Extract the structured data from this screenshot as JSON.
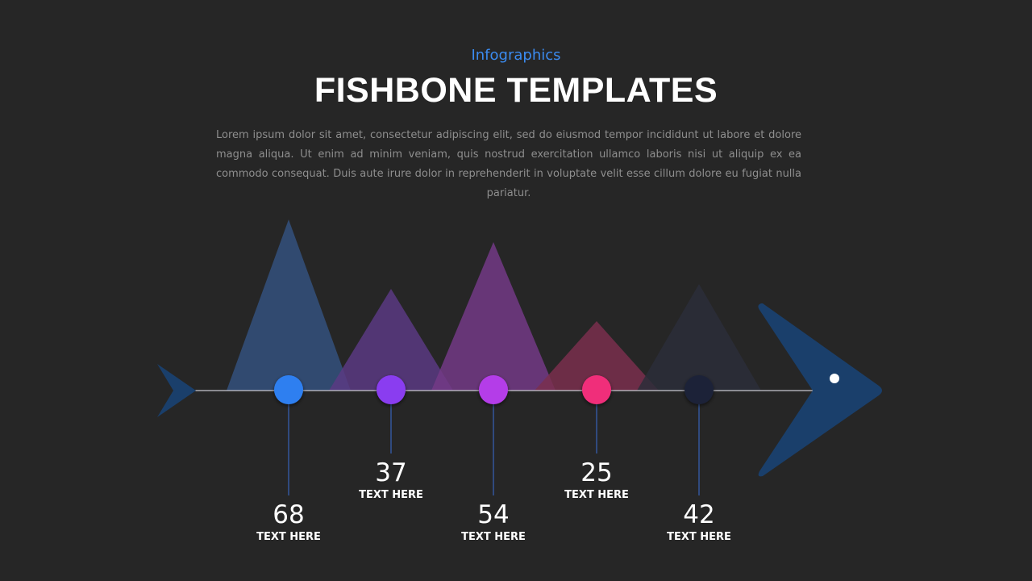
{
  "header": {
    "subtitle": "Infographics",
    "title": "FISHBONE TEMPLATES",
    "body": "Lorem ipsum dolor sit amet, consectetur adipiscing elit, sed do eiusmod tempor incididunt ut labore et dolore magna aliqua. Ut enim ad minim veniam, quis nostrud exercitation ullamco laboris nisi ut aliquip ex ea commodo consequat. Duis aute irure dolor in reprehenderit in voluptate velit esse cillum dolore eu fugiat nulla pariatur."
  },
  "colors": {
    "background": "#262626",
    "fish": "#1a3f6b",
    "accent_blue": "#3b8bf0"
  },
  "items": [
    {
      "value": "68",
      "label": "TEXT HERE",
      "color": "#2f7ff0",
      "fin_color": "#34517e"
    },
    {
      "value": "37",
      "label": "TEXT HERE",
      "color": "#8a3cf0",
      "fin_color": "#5a3a82"
    },
    {
      "value": "54",
      "label": "TEXT HERE",
      "color": "#b43ce8",
      "fin_color": "#733a86"
    },
    {
      "value": "25",
      "label": "TEXT HERE",
      "color": "#f02e7a",
      "fin_color": "#7a2f4e"
    },
    {
      "value": "42",
      "label": "TEXT HERE",
      "color": "#1c2238",
      "fin_color": "#2c2e3a"
    }
  ]
}
